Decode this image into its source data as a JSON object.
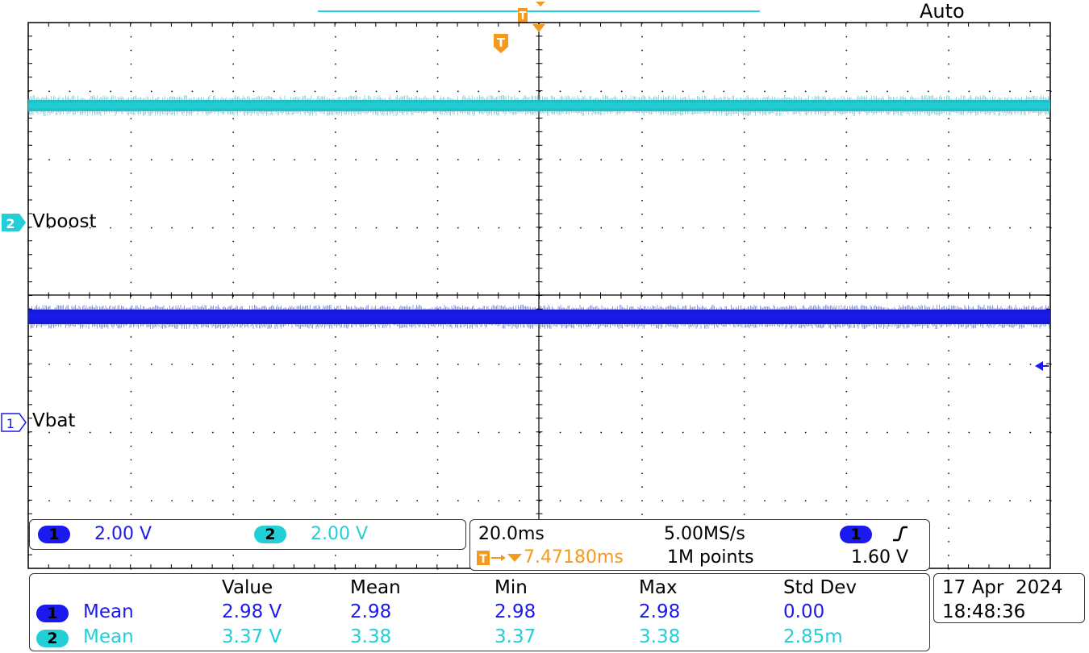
{
  "acquisition_mode": "Auto",
  "colors": {
    "ch1": "#1a1aef",
    "ch1_trace": "#0a1a9a",
    "ch2": "#22cfd6",
    "ch2_trace": "#1f9c9e",
    "trigger": "#f39a1e",
    "grid": "#000000"
  },
  "channels": [
    {
      "number": "1",
      "label": "Vbat",
      "scale": "2.00 V"
    },
    {
      "number": "2",
      "label": "Vboost",
      "scale": "2.00 V"
    }
  ],
  "timebase": {
    "scale": "20.0ms",
    "sample_rate": "5.00MS/s",
    "trigger_delay": "7.47180ms",
    "record_length": "1M points",
    "trigger_channel": "1",
    "trigger_slope_icon": "rising-edge-icon",
    "trigger_level": "1.60 V"
  },
  "measurements": {
    "headers": [
      "Value",
      "Mean",
      "Min",
      "Max",
      "Std Dev"
    ],
    "rows": [
      {
        "channel": "1",
        "type": "Mean",
        "value": "2.98 V",
        "mean": "2.98",
        "min": "2.98",
        "max": "2.98",
        "std_dev": "0.00"
      },
      {
        "channel": "2",
        "type": "Mean",
        "value": "3.37 V",
        "mean": "3.38",
        "min": "3.37",
        "max": "3.38",
        "std_dev": "2.85m"
      }
    ]
  },
  "datetime": {
    "date": "17 Apr  2024",
    "time": "18:48:36"
  },
  "icons": {
    "trigger_marker": "trigger-t-icon",
    "trigger_position": "trigger-position-arrow-icon",
    "trigger_level": "trigger-level-arrow-icon"
  }
}
